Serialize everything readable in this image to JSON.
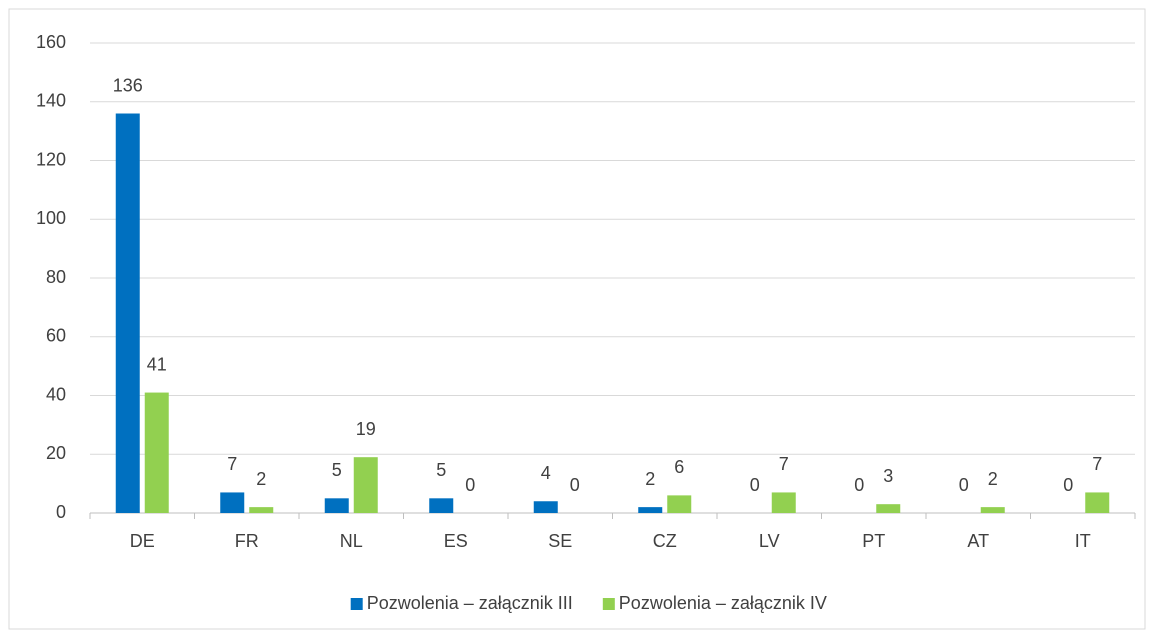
{
  "chart_data": {
    "type": "bar",
    "categories": [
      "DE",
      "FR",
      "NL",
      "ES",
      "SE",
      "CZ",
      "LV",
      "PT",
      "AT",
      "IT"
    ],
    "series": [
      {
        "name": "Pozwolenia – załącznik III",
        "color": "#0070c0",
        "values": [
          136,
          7,
          5,
          5,
          4,
          2,
          0,
          0,
          0,
          0
        ]
      },
      {
        "name": "Pozwolenia – załącznik IV",
        "color": "#92d050",
        "values": [
          41,
          2,
          19,
          0,
          0,
          6,
          7,
          3,
          2,
          7
        ]
      }
    ],
    "ylim": [
      0,
      160
    ],
    "yticks": [
      0,
      20,
      40,
      60,
      80,
      100,
      120,
      140,
      160
    ],
    "grid": true,
    "legend": "bottom"
  }
}
